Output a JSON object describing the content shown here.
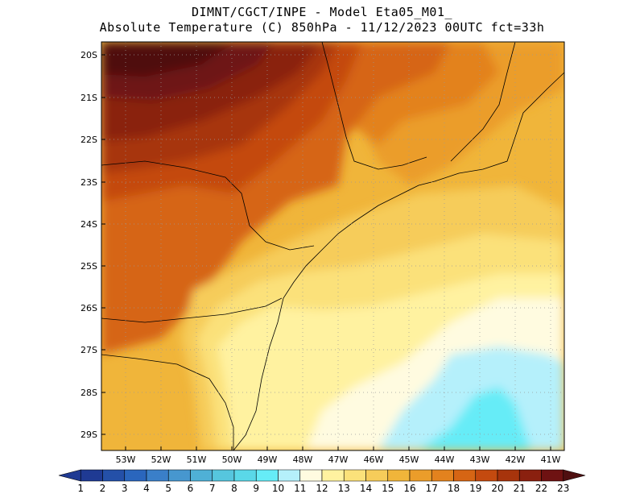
{
  "header": {
    "line1": "DIMNT/CGCT/INPE -  Model Eta05_M01_",
    "line2": "Absolute Temperature (C) 850hPa -  11/12/2023 00UTC fct=33h"
  },
  "axes": {
    "lat_labels": [
      "20S",
      "21S",
      "22S",
      "23S",
      "24S",
      "25S",
      "26S",
      "27S",
      "28S",
      "29S"
    ],
    "lon_labels": [
      "53W",
      "52W",
      "51W",
      "50W",
      "49W",
      "48W",
      "47W",
      "46W",
      "45W",
      "44W",
      "43W",
      "42W",
      "41W"
    ]
  },
  "colorbar": {
    "labels": [
      "1",
      "2",
      "3",
      "4",
      "5",
      "6",
      "7",
      "8",
      "9",
      "10",
      "11",
      "12",
      "13",
      "14",
      "15",
      "16",
      "17",
      "18",
      "19",
      "20",
      "21",
      "22",
      "23"
    ],
    "colors": [
      "#1f3a93",
      "#2450a8",
      "#2a66bd",
      "#3a7fc9",
      "#4797cf",
      "#4fb0d6",
      "#56c6de",
      "#5ad8e8",
      "#66ecf7",
      "#b5f0fb",
      "#fffbe0",
      "#fff2a0",
      "#fbe17a",
      "#f6cc5a",
      "#f0b53a",
      "#eb9d2a",
      "#e3821e",
      "#d66514",
      "#c44a0f",
      "#a7340c",
      "#8a200f",
      "#6e1212",
      "#4f0f10"
    ]
  }
}
